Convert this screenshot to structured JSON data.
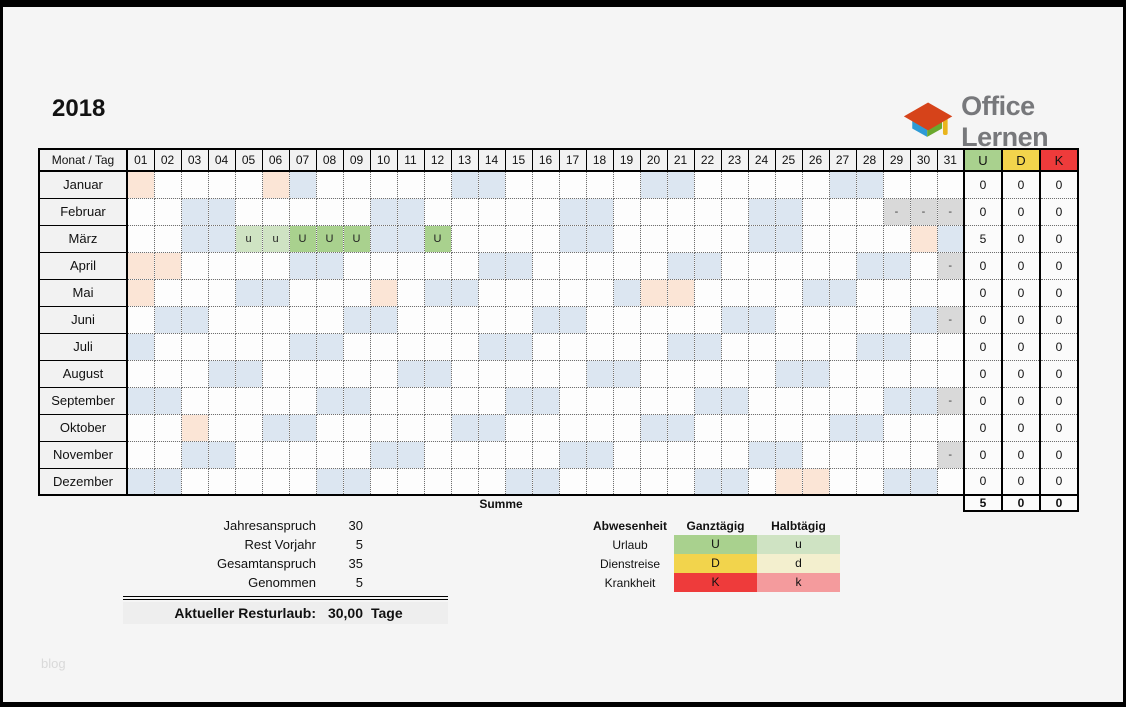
{
  "header": {
    "year": "2018",
    "brand": "Office Lernen"
  },
  "footer": {
    "watermark": "blog"
  },
  "colors": {
    "weekend": "#dce6f1",
    "holiday": "#fbe5d6",
    "not_in_month": "#d9d9d9",
    "vacation_full": "#a9d18e",
    "vacation_half": "#cfe3c3",
    "header_bg": "#f2f2f2"
  },
  "calendar": {
    "corner_label": "Monat / Tag",
    "day_labels": [
      "01",
      "02",
      "03",
      "04",
      "05",
      "06",
      "07",
      "08",
      "09",
      "10",
      "11",
      "12",
      "13",
      "14",
      "15",
      "16",
      "17",
      "18",
      "19",
      "20",
      "21",
      "22",
      "23",
      "24",
      "25",
      "26",
      "27",
      "28",
      "29",
      "30",
      "31"
    ],
    "count_columns": [
      {
        "label": "U",
        "color": "#a9d18e"
      },
      {
        "label": "D",
        "color": "#f2d44c"
      },
      {
        "label": "K",
        "color": "#ee3b3b"
      }
    ],
    "full_day_mark": "U",
    "half_day_mark": "u",
    "na_mark": "-",
    "sum_label": "Summe",
    "sums": [
      "5",
      "0",
      "0"
    ],
    "months": [
      {
        "name": "Januar",
        "holidays": [
          1,
          6
        ],
        "weekends": [
          7,
          13,
          14,
          20,
          21,
          27,
          28
        ],
        "na": [],
        "vac_full": [],
        "vac_half": [],
        "counts": [
          "0",
          "0",
          "0"
        ]
      },
      {
        "name": "Februar",
        "holidays": [],
        "weekends": [
          3,
          4,
          10,
          11,
          17,
          18,
          24,
          25
        ],
        "na": [
          29,
          30,
          31
        ],
        "vac_full": [],
        "vac_half": [],
        "counts": [
          "0",
          "0",
          "0"
        ]
      },
      {
        "name": "März",
        "holidays": [
          30
        ],
        "weekends": [
          3,
          4,
          10,
          11,
          17,
          18,
          24,
          25,
          31
        ],
        "na": [],
        "vac_full": [
          7,
          8,
          9,
          12
        ],
        "vac_half": [
          5,
          6
        ],
        "counts": [
          "5",
          "0",
          "0"
        ]
      },
      {
        "name": "April",
        "holidays": [
          1,
          2
        ],
        "weekends": [
          7,
          8,
          14,
          15,
          21,
          22,
          28,
          29
        ],
        "na": [
          31
        ],
        "vac_full": [],
        "vac_half": [],
        "counts": [
          "0",
          "0",
          "0"
        ]
      },
      {
        "name": "Mai",
        "holidays": [
          1,
          10,
          20,
          21
        ],
        "weekends": [
          5,
          6,
          12,
          13,
          19,
          26,
          27
        ],
        "na": [],
        "vac_full": [],
        "vac_half": [],
        "counts": [
          "0",
          "0",
          "0"
        ]
      },
      {
        "name": "Juni",
        "holidays": [],
        "weekends": [
          2,
          3,
          9,
          10,
          16,
          17,
          23,
          24,
          30
        ],
        "na": [
          31
        ],
        "vac_full": [],
        "vac_half": [],
        "counts": [
          "0",
          "0",
          "0"
        ]
      },
      {
        "name": "Juli",
        "holidays": [],
        "weekends": [
          1,
          7,
          8,
          14,
          15,
          21,
          22,
          28,
          29
        ],
        "na": [],
        "vac_full": [],
        "vac_half": [],
        "counts": [
          "0",
          "0",
          "0"
        ]
      },
      {
        "name": "August",
        "holidays": [],
        "weekends": [
          4,
          5,
          11,
          12,
          18,
          19,
          25,
          26
        ],
        "na": [],
        "vac_full": [],
        "vac_half": [],
        "counts": [
          "0",
          "0",
          "0"
        ]
      },
      {
        "name": "September",
        "holidays": [],
        "weekends": [
          1,
          2,
          8,
          9,
          15,
          16,
          22,
          23,
          29,
          30
        ],
        "na": [
          31
        ],
        "vac_full": [],
        "vac_half": [],
        "counts": [
          "0",
          "0",
          "0"
        ]
      },
      {
        "name": "Oktober",
        "holidays": [
          3
        ],
        "weekends": [
          6,
          7,
          13,
          14,
          20,
          21,
          27,
          28
        ],
        "na": [],
        "vac_full": [],
        "vac_half": [],
        "counts": [
          "0",
          "0",
          "0"
        ]
      },
      {
        "name": "November",
        "holidays": [],
        "weekends": [
          3,
          4,
          10,
          11,
          17,
          18,
          24,
          25
        ],
        "na": [
          31
        ],
        "vac_full": [],
        "vac_half": [],
        "counts": [
          "0",
          "0",
          "0"
        ]
      },
      {
        "name": "Dezember",
        "holidays": [
          25,
          26
        ],
        "weekends": [
          1,
          2,
          8,
          9,
          15,
          16,
          22,
          23,
          29,
          30
        ],
        "na": [],
        "vac_full": [],
        "vac_half": [],
        "counts": [
          "0",
          "0",
          "0"
        ]
      }
    ]
  },
  "summary": {
    "rows": [
      {
        "label": "Jahresanspruch",
        "value": "30"
      },
      {
        "label": "Rest Vorjahr",
        "value": "5"
      },
      {
        "label": "Gesamtanspruch",
        "value": "35"
      },
      {
        "label": "Genommen",
        "value": "5"
      }
    ],
    "total_label": "Aktueller Resturlaub:",
    "total_value": "30,00",
    "total_unit": "Tage"
  },
  "legend": {
    "title": "Abwesenheit",
    "col_full": "Ganztägig",
    "col_half": "Halbtägig",
    "rows": [
      {
        "label": "Urlaub",
        "full": "U",
        "half": "u",
        "full_color": "#a9d18e",
        "half_color": "#cfe3c3"
      },
      {
        "label": "Dienstreise",
        "full": "D",
        "half": "d",
        "full_color": "#f2d44c",
        "half_color": "#f3efce"
      },
      {
        "label": "Krankheit",
        "full": "K",
        "half": "k",
        "full_color": "#ee3b3b",
        "half_color": "#f49b9d"
      }
    ]
  }
}
